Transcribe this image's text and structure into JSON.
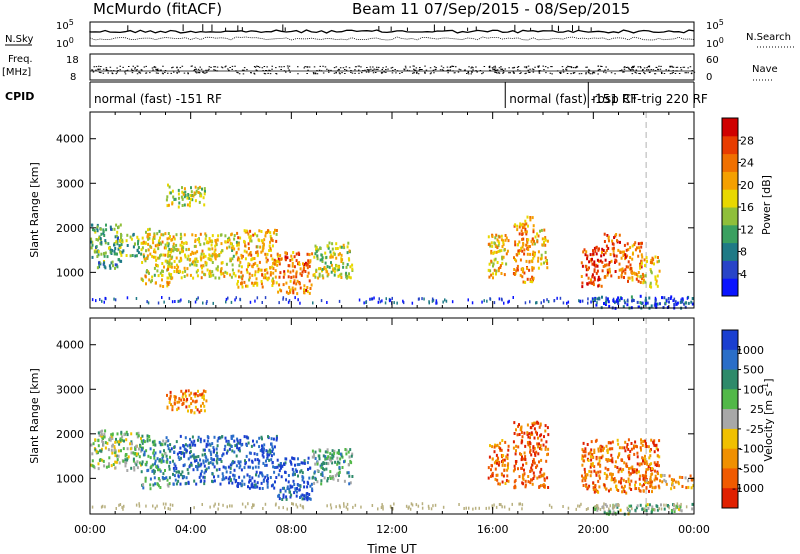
{
  "header": {
    "station": "McMurdo (fitACF)",
    "beam_info": "Beam 11  07/Sep/2015 - 08/Sep/2015"
  },
  "top_panels": {
    "nsky_label": "N.Sky",
    "nsky_ticks": [
      "10^5",
      "10^0"
    ],
    "nsearch_label": "N.Search",
    "nsearch_ticks": [
      "10^5",
      "10^0"
    ],
    "freq_label_1": "Freq.",
    "freq_label_2": "[MHz]",
    "freq_ticks": [
      "18",
      "8"
    ],
    "nave_label": "Nave",
    "nave_ticks": [
      "60",
      "0"
    ],
    "cpid_label": "CPID",
    "cpid_segments": [
      {
        "start_h": 0,
        "end_h": 16.5,
        "text": "normal (fast) -151 RF"
      },
      {
        "start_h": 16.5,
        "end_h": 19.8,
        "text": "normal (fast) -151 RF"
      },
      {
        "start_h": 19.8,
        "end_h": 24,
        "text": "rbsp CT-trig 220 RF"
      }
    ]
  },
  "chart_data": [
    {
      "type": "heatmap",
      "name": "power",
      "xlabel": "",
      "ylabel": "Slant Range [km]",
      "xlim_hours": [
        0,
        24
      ],
      "ylim": [
        200,
        4600
      ],
      "yticks": [
        1000,
        2000,
        3000,
        4000
      ],
      "colorbar": {
        "label": "Power [dB]",
        "range": [
          0,
          32
        ],
        "ticks": [
          4,
          8,
          12,
          16,
          20,
          24,
          28
        ],
        "colors": [
          "#0a14ff",
          "#2844c8",
          "#1f7a86",
          "#3aa060",
          "#8fbf3a",
          "#e8d800",
          "#f5a000",
          "#f07000",
          "#e83c00",
          "#d00000"
        ]
      },
      "scatter_regions": [
        {
          "x0": 0.0,
          "x1": 1.2,
          "y0": 1100,
          "y1": 2100,
          "level": 0.35
        },
        {
          "x0": 1.0,
          "x1": 2.0,
          "y0": 1400,
          "y1": 1900,
          "level": 0.4
        },
        {
          "x0": 2.0,
          "x1": 3.2,
          "y0": 700,
          "y1": 2000,
          "level": 0.55
        },
        {
          "x0": 3.0,
          "x1": 4.6,
          "y0": 2500,
          "y1": 3000,
          "level": 0.5
        },
        {
          "x0": 3.0,
          "x1": 5.8,
          "y0": 900,
          "y1": 1900,
          "level": 0.55
        },
        {
          "x0": 5.8,
          "x1": 7.4,
          "y0": 700,
          "y1": 2000,
          "level": 0.65
        },
        {
          "x0": 7.4,
          "x1": 8.8,
          "y0": 550,
          "y1": 1500,
          "level": 0.75
        },
        {
          "x0": 8.8,
          "x1": 10.4,
          "y0": 900,
          "y1": 1700,
          "level": 0.5
        },
        {
          "x0": 15.8,
          "x1": 16.6,
          "y0": 900,
          "y1": 1900,
          "level": 0.6
        },
        {
          "x0": 16.8,
          "x1": 17.6,
          "y0": 800,
          "y1": 2300,
          "level": 0.7
        },
        {
          "x0": 17.6,
          "x1": 18.2,
          "y0": 1100,
          "y1": 2000,
          "level": 0.6
        },
        {
          "x0": 19.5,
          "x1": 20.4,
          "y0": 700,
          "y1": 1600,
          "level": 0.85
        },
        {
          "x0": 20.4,
          "x1": 21.2,
          "y0": 900,
          "y1": 1900,
          "level": 0.8
        },
        {
          "x0": 21.2,
          "x1": 21.9,
          "y0": 800,
          "y1": 1700,
          "level": 0.75
        },
        {
          "x0": 21.8,
          "x1": 22.6,
          "y0": 700,
          "y1": 1400,
          "level": 0.6
        },
        {
          "x0": 20.0,
          "x1": 24.0,
          "y0": 220,
          "y1": 500,
          "level": 0.15
        }
      ]
    },
    {
      "type": "heatmap",
      "name": "velocity",
      "xlabel": "Time UT",
      "ylabel": "Slant Range [km]",
      "xlim_hours": [
        0,
        24
      ],
      "xticks": [
        "00:00",
        "04:00",
        "08:00",
        "12:00",
        "16:00",
        "20:00",
        "00:00"
      ],
      "ylim": [
        200,
        4600
      ],
      "yticks": [
        1000,
        2000,
        3000,
        4000
      ],
      "colorbar": {
        "label": "Velocity [m s^-1]",
        "ticks": [
          "1000",
          "500",
          "100",
          "25",
          "-25",
          "-100",
          "-500",
          "-1000"
        ],
        "colors": [
          "#1a3fd0",
          "#2a6ec8",
          "#2e8a6a",
          "#52b848",
          "#a8a8a8",
          "#f0c000",
          "#f09000",
          "#f05a00",
          "#e02000"
        ]
      },
      "scatter_regions": [
        {
          "x0": 0.0,
          "x1": 2.0,
          "y0": 1200,
          "y1": 2100,
          "level": 0.45
        },
        {
          "x0": 2.0,
          "x1": 3.2,
          "y0": 800,
          "y1": 2000,
          "level": 0.3
        },
        {
          "x0": 3.0,
          "x1": 4.6,
          "y0": 2500,
          "y1": 3000,
          "level": 0.75
        },
        {
          "x0": 3.2,
          "x1": 5.8,
          "y0": 900,
          "y1": 2000,
          "level": 0.15
        },
        {
          "x0": 5.8,
          "x1": 7.4,
          "y0": 800,
          "y1": 2000,
          "level": 0.1
        },
        {
          "x0": 7.4,
          "x1": 8.8,
          "y0": 550,
          "y1": 1500,
          "level": 0.1
        },
        {
          "x0": 8.8,
          "x1": 10.4,
          "y0": 900,
          "y1": 1700,
          "level": 0.35
        },
        {
          "x0": 15.8,
          "x1": 16.6,
          "y0": 900,
          "y1": 1900,
          "level": 0.8
        },
        {
          "x0": 16.8,
          "x1": 18.2,
          "y0": 800,
          "y1": 2300,
          "level": 0.85
        },
        {
          "x0": 19.5,
          "x1": 22.6,
          "y0": 700,
          "y1": 1900,
          "level": 0.8
        },
        {
          "x0": 22.0,
          "x1": 24.0,
          "y0": 800,
          "y1": 1100,
          "level": 0.7
        },
        {
          "x0": 20.0,
          "x1": 24.0,
          "y0": 220,
          "y1": 450,
          "level": 0.4
        }
      ]
    }
  ],
  "colors": {
    "frame": "#000000",
    "dashed_marker": "#cccccc"
  }
}
